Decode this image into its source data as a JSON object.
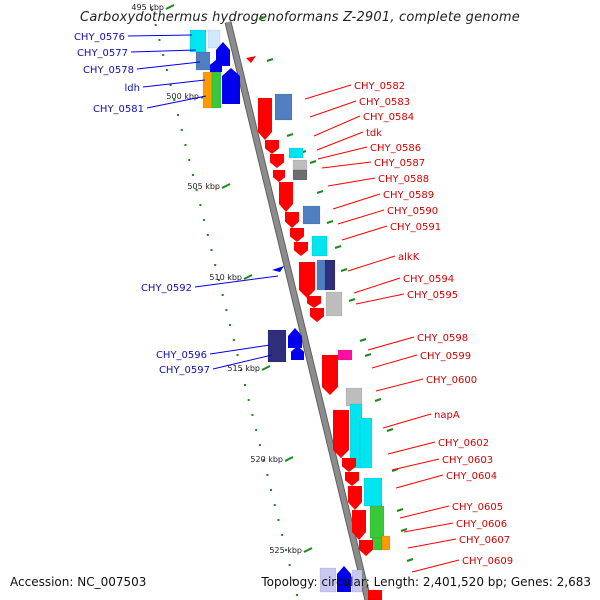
{
  "title": "Carboxydothermus hydrogenoformans Z-2901, complete genome",
  "accession": "Accession: NC_007503",
  "summary": "Topology: circular; Length: 2,401,520 bp; Genes: 2,683",
  "scale_labels": [
    "495 kbp",
    "500 kbp",
    "505 kbp",
    "510 kbp",
    "515 kbp",
    "520 kbp",
    "525 kbp"
  ],
  "left_labels": [
    "CHY_0576",
    "CHY_0577",
    "CHY_0578",
    "ldh",
    "CHY_0581",
    "CHY_0592",
    "CHY_0596",
    "CHY_0597"
  ],
  "right_labels": [
    "CHY_0582",
    "CHY_0583",
    "CHY_0584",
    "tdk",
    "CHY_0586",
    "CHY_0587",
    "CHY_0588",
    "CHY_0589",
    "CHY_0590",
    "CHY_0591",
    "alkK",
    "CHY_0594",
    "CHY_0595",
    "CHY_0598",
    "CHY_0599",
    "CHY_0600",
    "napA",
    "CHY_0602",
    "CHY_0603",
    "CHY_0604",
    "CHY_0605",
    "CHY_0606",
    "CHY_0607",
    "CHY_0609"
  ],
  "colors": {
    "forward": "#ff0000",
    "reverse": "#0000ee",
    "backbone": "#8c8c8c",
    "tick": "#1a8a1a",
    "cyan": "#00e5f0",
    "steel": "#4f7fc0",
    "navy": "#2e2e7a",
    "gray": "#bdbdbd",
    "darkgray": "#6e6e6e",
    "orange": "#ff9a00",
    "green": "#39c839",
    "magenta": "#ff10a0"
  }
}
